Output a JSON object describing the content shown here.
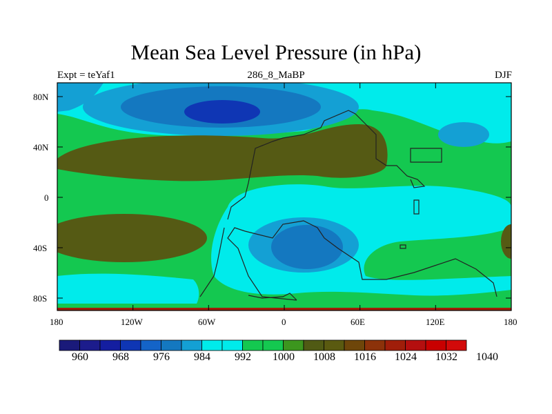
{
  "title": "Mean Sea Level Pressure (in hPa)",
  "subtitle_left": "Expt = teYaf1",
  "subtitle_center": "286_8_MaBP",
  "subtitle_right": "DJF",
  "y_ticks": [
    "80N",
    "40N",
    "0",
    "40S",
    "80S"
  ],
  "x_ticks": [
    "180",
    "120W",
    "60W",
    "0",
    "60E",
    "120E",
    "180"
  ],
  "colorbar": {
    "labels": [
      "960",
      "968",
      "976",
      "984",
      "992",
      "1000",
      "1008",
      "1016",
      "1024",
      "1032",
      "1040"
    ],
    "colors": [
      "#1a1a7a",
      "#1c1c8c",
      "#141ea0",
      "#0f36b4",
      "#1464c8",
      "#1478c0",
      "#14a0d4",
      "#00ebeb",
      "#00ebeb",
      "#14c850",
      "#14c850",
      "#3c961e",
      "#505a14",
      "#5a5a10",
      "#6e460a",
      "#8c320a",
      "#a01e0a",
      "#b40f0f",
      "#c80000",
      "#d20a0a"
    ]
  },
  "field_colors": {
    "deep_low": "#0f36b4",
    "low": "#1478c0",
    "mid_low": "#14a0d4",
    "cyan": "#00ebeb",
    "green": "#14c850",
    "high": "#555a14",
    "very_high": "#a01e0a"
  }
}
